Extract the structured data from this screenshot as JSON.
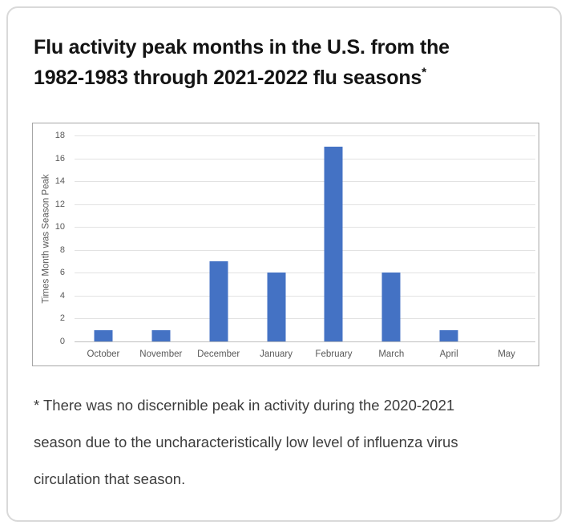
{
  "card": {
    "title_line1": "Flu activity peak months in the U.S. from the",
    "title_line2": "1982-1983 through 2021-2022 flu seasons",
    "title_superscript": "*",
    "footnote_lines": [
      "* There was no discernible peak in activity during the 2020-2021",
      "season due to the uncharacteristically low level of influenza virus",
      "circulation that season."
    ]
  },
  "chart_data": {
    "type": "bar",
    "categories": [
      "October",
      "November",
      "December",
      "January",
      "February",
      "March",
      "April",
      "May"
    ],
    "values": [
      1,
      1,
      7,
      6,
      17,
      6,
      1,
      0
    ],
    "title": "",
    "xlabel": "",
    "ylabel": "Times Month was Season Peak",
    "ylim": [
      0,
      18
    ],
    "ytick_step": 2,
    "grid": true,
    "legend_position": "none",
    "bar_color": "#4472C4",
    "gridline_color": "#e2e2e2",
    "axis_line_color": "#bfbfbf",
    "axis_text_color": "#595959",
    "chart_border_color": "#a6a6a6"
  }
}
